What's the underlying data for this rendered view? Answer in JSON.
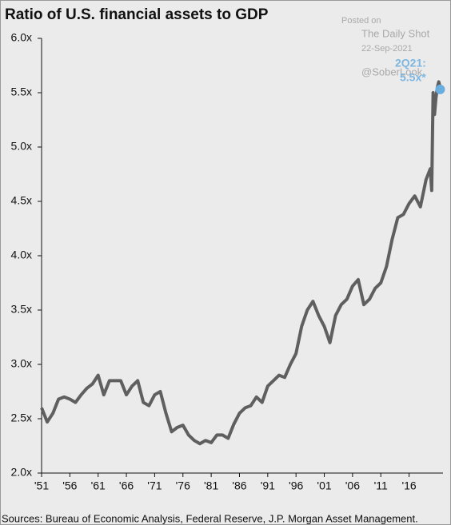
{
  "chart_data": {
    "type": "line",
    "title": "Ratio of U.S. financial assets to GDP",
    "annotations": [
      "Posted on",
      "The Daily Shot",
      "22-Sep-2021",
      "2Q21:",
      "@SoberLook",
      "5.5x*"
    ],
    "source": "Sources: Bureau of Economic Analysis, Federal Reserve, J.P. Morgan Asset Management.",
    "color": "#5f5f5f",
    "x": [
      1951,
      1952,
      1953,
      1954,
      1955,
      1956,
      1957,
      1958,
      1959,
      1960,
      1961,
      1962,
      1963,
      1964,
      1965,
      1966,
      1967,
      1968,
      1969,
      1970,
      1971,
      1972,
      1973,
      1974,
      1975,
      1976,
      1977,
      1978,
      1979,
      1980,
      1981,
      1982,
      1983,
      1984,
      1985,
      1986,
      1987,
      1988,
      1989,
      1990,
      1991,
      1992,
      1993,
      1994,
      1995,
      1996,
      1997,
      1998,
      1999,
      2000,
      2001,
      2002,
      2003,
      2004,
      2005,
      2006,
      2007,
      2008,
      2009,
      2010,
      2011,
      2012,
      2013,
      2014,
      2015,
      2016,
      2017,
      2018,
      2019,
      2019.75,
      2020,
      2020.25,
      2020.5,
      2020.75,
      2021,
      2021.25,
      2021.5
    ],
    "values": [
      2.6,
      2.47,
      2.55,
      2.68,
      2.7,
      2.68,
      2.65,
      2.72,
      2.78,
      2.82,
      2.9,
      2.72,
      2.85,
      2.85,
      2.85,
      2.72,
      2.8,
      2.85,
      2.65,
      2.62,
      2.72,
      2.75,
      2.55,
      2.38,
      2.42,
      2.44,
      2.35,
      2.3,
      2.27,
      2.3,
      2.28,
      2.35,
      2.35,
      2.32,
      2.45,
      2.55,
      2.6,
      2.62,
      2.7,
      2.65,
      2.8,
      2.85,
      2.9,
      2.88,
      3.0,
      3.1,
      3.35,
      3.5,
      3.58,
      3.45,
      3.35,
      3.2,
      3.45,
      3.55,
      3.6,
      3.72,
      3.78,
      3.55,
      3.6,
      3.7,
      3.75,
      3.9,
      4.15,
      4.35,
      4.38,
      4.48,
      4.55,
      4.45,
      4.7,
      4.8,
      4.6,
      5.5,
      5.3,
      5.45,
      5.55,
      5.6,
      5.55
    ],
    "highlight": {
      "x": 2021.5,
      "value": 5.53,
      "color": "#6aaee0"
    },
    "xlim": [
      1951,
      2022
    ],
    "xticks": [
      {
        "value": 1951,
        "label": "'51"
      },
      {
        "value": 1956,
        "label": "'56"
      },
      {
        "value": 1961,
        "label": "'61"
      },
      {
        "value": 1966,
        "label": "'66"
      },
      {
        "value": 1971,
        "label": "'71"
      },
      {
        "value": 1976,
        "label": "'76"
      },
      {
        "value": 1981,
        "label": "'81"
      },
      {
        "value": 1986,
        "label": "'86"
      },
      {
        "value": 1991,
        "label": "'91"
      },
      {
        "value": 1996,
        "label": "'96"
      },
      {
        "value": 2001,
        "label": "'01"
      },
      {
        "value": 2006,
        "label": "'06"
      },
      {
        "value": 2011,
        "label": "'11"
      },
      {
        "value": 2016,
        "label": "'16"
      }
    ],
    "ylim": [
      2,
      6
    ],
    "yticks": [
      {
        "value": 2,
        "label": "2.0x"
      },
      {
        "value": 2.5,
        "label": "2.5x"
      },
      {
        "value": 3,
        "label": "3.0x"
      },
      {
        "value": 3.5,
        "label": "3.5x"
      },
      {
        "value": 4,
        "label": "4.0x"
      },
      {
        "value": 4.5,
        "label": "4.5x"
      },
      {
        "value": 5,
        "label": "5.0x"
      },
      {
        "value": 5.5,
        "label": "5.5x"
      },
      {
        "value": 6,
        "label": "6.0x"
      }
    ]
  }
}
